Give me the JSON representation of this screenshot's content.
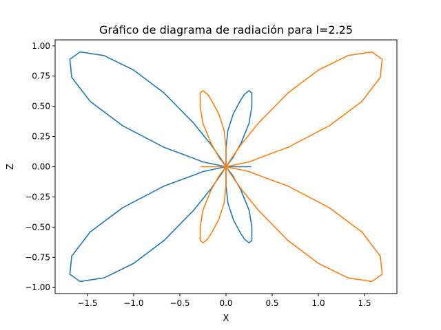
{
  "chart_data": {
    "type": "line",
    "title": "Gráfico de diagrama de radiación para l=2.25",
    "xlabel": "X",
    "ylabel": "Z",
    "xlim": [
      -1.85,
      1.85
    ],
    "ylim": [
      -1.05,
      1.05
    ],
    "xticks": [
      -1.5,
      -1.0,
      -0.5,
      0.0,
      0.5,
      1.0,
      1.5
    ],
    "xtick_labels": [
      "−1.5",
      "−1.0",
      "−0.5",
      "0.0",
      "0.5",
      "1.0",
      "1.5"
    ],
    "yticks": [
      1.0,
      0.75,
      0.5,
      0.25,
      0.0,
      -0.25,
      -0.5,
      -0.75,
      -1.0
    ],
    "ytick_labels": [
      "1.00",
      "0.75",
      "0.50",
      "0.25",
      "0.00",
      "−0.25",
      "−0.50",
      "−0.75",
      "−1.00"
    ],
    "grid": false,
    "series": [
      {
        "color": "#1f77b4",
        "points": [
          [
            0.0,
            0.0
          ],
          [
            -0.25,
            0.04
          ],
          [
            -0.35,
            0.07
          ],
          [
            -0.67,
            0.16
          ],
          [
            -1.12,
            0.34
          ],
          [
            -1.47,
            0.54
          ],
          [
            -1.67,
            0.74
          ],
          [
            -1.69,
            0.89
          ],
          [
            -1.58,
            0.95
          ],
          [
            -1.32,
            0.92
          ],
          [
            -1.0,
            0.8
          ],
          [
            -0.67,
            0.61
          ],
          [
            -0.35,
            0.36
          ],
          [
            -0.17,
            0.19
          ],
          [
            -0.05,
            0.06
          ],
          [
            0.0,
            0.0
          ],
          [
            0.0,
            0.15
          ],
          [
            0.02,
            0.3
          ],
          [
            0.08,
            0.44
          ],
          [
            0.15,
            0.54
          ],
          [
            0.2,
            0.6
          ],
          [
            0.25,
            0.63
          ],
          [
            0.28,
            0.61
          ],
          [
            0.28,
            0.5
          ],
          [
            0.25,
            0.36
          ],
          [
            0.16,
            0.19
          ],
          [
            0.07,
            0.07
          ],
          [
            0.0,
            0.0
          ],
          [
            0.27,
            0.0
          ],
          [
            0.0,
            0.0
          ],
          [
            0.07,
            -0.07
          ],
          [
            0.16,
            -0.19
          ],
          [
            0.25,
            -0.36
          ],
          [
            0.28,
            -0.5
          ],
          [
            0.28,
            -0.61
          ],
          [
            0.25,
            -0.63
          ],
          [
            0.2,
            -0.6
          ],
          [
            0.15,
            -0.54
          ],
          [
            0.08,
            -0.44
          ],
          [
            0.02,
            -0.3
          ],
          [
            0.0,
            -0.15
          ],
          [
            0.0,
            0.0
          ],
          [
            -0.05,
            -0.06
          ],
          [
            -0.17,
            -0.19
          ],
          [
            -0.35,
            -0.36
          ],
          [
            -0.67,
            -0.61
          ],
          [
            -1.0,
            -0.8
          ],
          [
            -1.32,
            -0.92
          ],
          [
            -1.58,
            -0.95
          ],
          [
            -1.69,
            -0.89
          ],
          [
            -1.67,
            -0.74
          ],
          [
            -1.47,
            -0.54
          ],
          [
            -1.12,
            -0.34
          ],
          [
            -0.67,
            -0.16
          ],
          [
            -0.35,
            -0.07
          ],
          [
            -0.25,
            -0.04
          ],
          [
            0.0,
            0.0
          ]
        ]
      },
      {
        "color": "#ff7f0e",
        "points": [
          [
            0.0,
            0.0
          ],
          [
            0.25,
            0.04
          ],
          [
            0.35,
            0.07
          ],
          [
            0.67,
            0.16
          ],
          [
            1.12,
            0.34
          ],
          [
            1.47,
            0.54
          ],
          [
            1.67,
            0.74
          ],
          [
            1.69,
            0.89
          ],
          [
            1.58,
            0.95
          ],
          [
            1.32,
            0.92
          ],
          [
            1.0,
            0.8
          ],
          [
            0.67,
            0.61
          ],
          [
            0.35,
            0.36
          ],
          [
            0.17,
            0.19
          ],
          [
            0.05,
            0.06
          ],
          [
            0.0,
            0.0
          ],
          [
            0.0,
            0.15
          ],
          [
            -0.02,
            0.3
          ],
          [
            -0.08,
            0.44
          ],
          [
            -0.15,
            0.54
          ],
          [
            -0.2,
            0.6
          ],
          [
            -0.25,
            0.63
          ],
          [
            -0.28,
            0.61
          ],
          [
            -0.28,
            0.5
          ],
          [
            -0.25,
            0.36
          ],
          [
            -0.16,
            0.19
          ],
          [
            -0.07,
            0.07
          ],
          [
            0.0,
            0.0
          ],
          [
            -0.27,
            0.0
          ],
          [
            0.0,
            0.0
          ],
          [
            -0.07,
            -0.07
          ],
          [
            -0.16,
            -0.19
          ],
          [
            -0.25,
            -0.36
          ],
          [
            -0.28,
            -0.5
          ],
          [
            -0.28,
            -0.61
          ],
          [
            -0.25,
            -0.63
          ],
          [
            -0.2,
            -0.6
          ],
          [
            -0.15,
            -0.54
          ],
          [
            -0.08,
            -0.44
          ],
          [
            -0.02,
            -0.3
          ],
          [
            0.0,
            -0.15
          ],
          [
            0.0,
            0.0
          ],
          [
            0.05,
            -0.06
          ],
          [
            0.17,
            -0.19
          ],
          [
            0.35,
            -0.36
          ],
          [
            0.67,
            -0.61
          ],
          [
            1.0,
            -0.8
          ],
          [
            1.32,
            -0.92
          ],
          [
            1.58,
            -0.95
          ],
          [
            1.69,
            -0.89
          ],
          [
            1.67,
            -0.74
          ],
          [
            1.47,
            -0.54
          ],
          [
            1.12,
            -0.34
          ],
          [
            0.67,
            -0.16
          ],
          [
            0.35,
            -0.07
          ],
          [
            0.25,
            -0.04
          ],
          [
            0.0,
            0.0
          ]
        ]
      }
    ]
  }
}
